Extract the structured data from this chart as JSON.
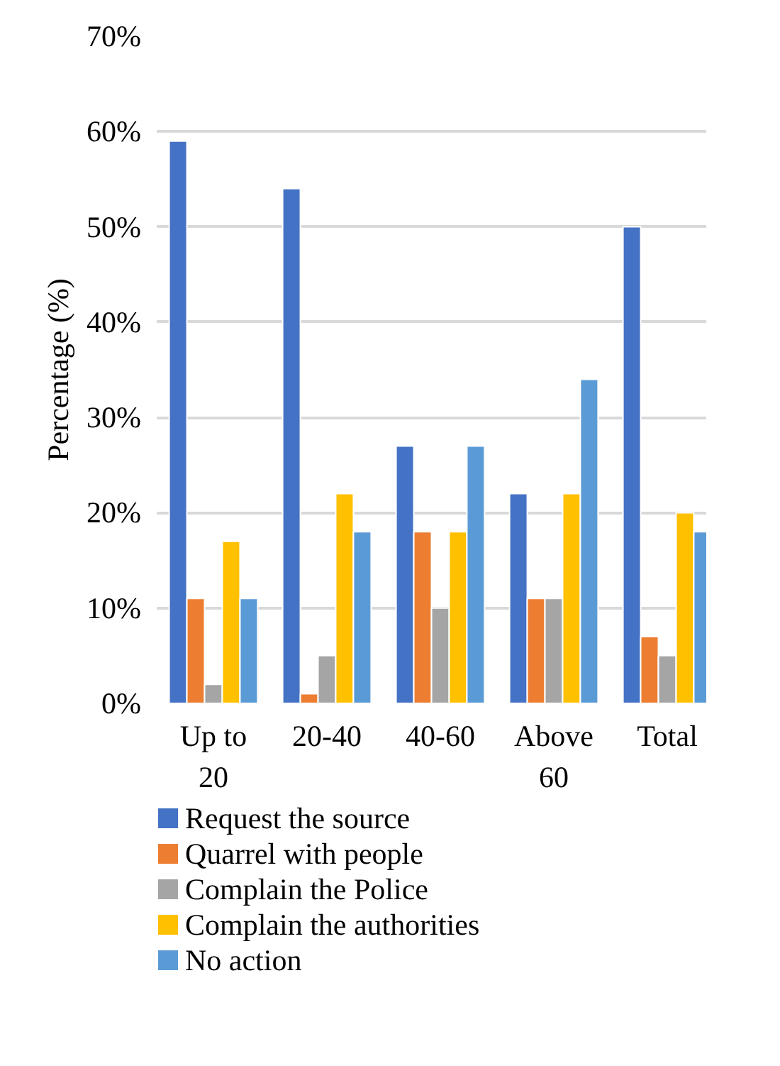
{
  "chart_data": {
    "type": "bar",
    "ylabel": "Percentage (%)",
    "categories": [
      "Up to 20",
      "20-40",
      "40-60",
      "Above 60",
      "Total"
    ],
    "series": [
      {
        "name": "Request the source",
        "color": "#4472c4",
        "values": [
          59,
          54,
          27,
          22,
          50
        ]
      },
      {
        "name": "Quarrel with people",
        "color": "#ed7d31",
        "values": [
          11,
          1,
          18,
          11,
          7
        ]
      },
      {
        "name": "Complain the Police",
        "color": "#a5a5a5",
        "values": [
          2,
          5,
          10,
          11,
          5
        ]
      },
      {
        "name": "Complain the authorities",
        "color": "#ffc000",
        "values": [
          17,
          22,
          18,
          22,
          20
        ]
      },
      {
        "name": "No action",
        "color": "#5b9bd5",
        "values": [
          11,
          18,
          27,
          34,
          18
        ]
      }
    ],
    "ylim": [
      0,
      70
    ],
    "yticks": [
      {
        "value": 0,
        "label": "0%"
      },
      {
        "value": 10,
        "label": "10%"
      },
      {
        "value": 20,
        "label": "20%"
      },
      {
        "value": 30,
        "label": "30%"
      },
      {
        "value": 40,
        "label": "40%"
      },
      {
        "value": 50,
        "label": "50%"
      },
      {
        "value": 60,
        "label": "60%"
      },
      {
        "value": 70,
        "label": "70%"
      }
    ],
    "grid": "y",
    "legend": "bottom"
  }
}
